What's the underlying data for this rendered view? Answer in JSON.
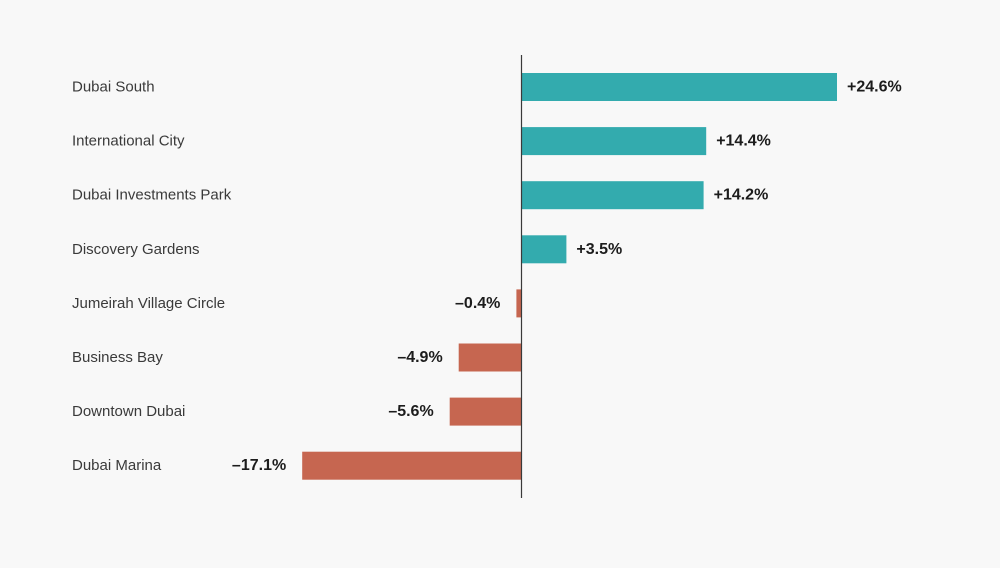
{
  "chart_data": {
    "type": "bar",
    "orientation": "horizontal",
    "title": "",
    "xlabel": "",
    "ylabel": "",
    "xlim": [
      -17.1,
      24.6
    ],
    "grid": false,
    "legend": "none",
    "categories": [
      "Dubai South",
      "International City",
      "Dubai Investments Park",
      "Discovery Gardens",
      "Jumeirah Village Circle",
      "Business Bay",
      "Downtown Dubai",
      "Dubai Marina"
    ],
    "values": [
      24.6,
      14.4,
      14.2,
      3.5,
      -0.4,
      -4.9,
      -5.6,
      -17.1
    ],
    "value_labels": [
      "+24.6%",
      "+14.4%",
      "+14.2%",
      "+3.5%",
      "–0.4%",
      "–4.9%",
      "–5.6%",
      "–17.1%"
    ],
    "colors": {
      "positive": "#33abae",
      "negative": "#c66650",
      "axis": "#3a3a3a",
      "background": "#f8f8f8"
    }
  }
}
